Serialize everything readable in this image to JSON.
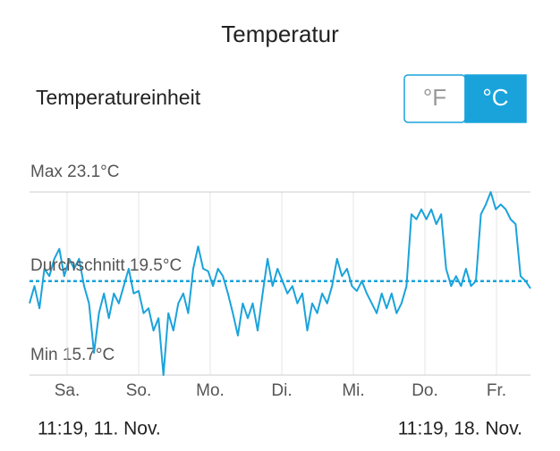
{
  "header": {
    "title": "Temperatur"
  },
  "unit_setting": {
    "label": "Temperatureinheit",
    "options": [
      "°F",
      "°C"
    ],
    "selected": 1
  },
  "chart_data": {
    "type": "line",
    "max_label": "Max 23.1°C",
    "avg_label": "Durchschnitt 19.5°C",
    "min_label": "Min 15.7°C",
    "x_tick_labels": [
      "Sa.",
      "So.",
      "Mo.",
      "Di.",
      "Mi.",
      "Do.",
      "Fr."
    ],
    "series": [
      {
        "color": "#1aa3db",
        "values": [
          18.6,
          19.3,
          18.4,
          20.0,
          19.7,
          20.4,
          20.8,
          19.7,
          20.4,
          20.0,
          20.4,
          19.3,
          18.6,
          16.6,
          18.2,
          19.0,
          18.0,
          19.0,
          18.6,
          19.3,
          20.0,
          19.0,
          19.1,
          18.2,
          18.4,
          17.5,
          18.0,
          15.7,
          18.2,
          17.5,
          18.6,
          19.0,
          18.2,
          20.0,
          20.9,
          20.0,
          19.9,
          19.3,
          20.0,
          19.7,
          19.0,
          18.2,
          17.3,
          18.6,
          18.0,
          18.6,
          17.5,
          19.0,
          20.4,
          19.3,
          20.0,
          19.5,
          19.0,
          19.3,
          18.6,
          19.0,
          17.5,
          18.6,
          18.2,
          19.0,
          18.6,
          19.3,
          20.4,
          19.7,
          20.0,
          19.3,
          19.1,
          19.5,
          19.0,
          18.6,
          18.2,
          19.0,
          18.4,
          19.0,
          18.2,
          18.6,
          19.3,
          22.2,
          22.0,
          22.4,
          22.0,
          22.4,
          21.8,
          22.2,
          20.0,
          19.3,
          19.7,
          19.3,
          20.0,
          19.3,
          19.5,
          22.2,
          22.6,
          23.1,
          22.4,
          22.6,
          22.4,
          22.0,
          21.8,
          19.7,
          19.5,
          19.2
        ]
      }
    ],
    "average": 19.5,
    "ylim": [
      15.7,
      23.1
    ]
  },
  "footer": {
    "start": "11:19,  11. Nov.",
    "end": "11:19,  18. Nov."
  }
}
